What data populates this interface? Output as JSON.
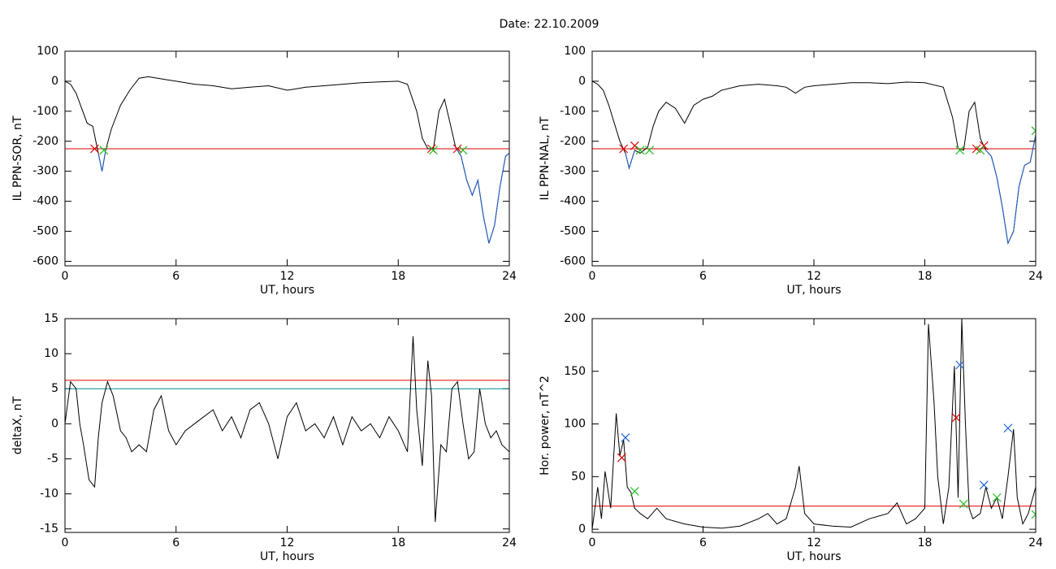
{
  "title": "Date:  22.10.2009",
  "chart_data": [
    {
      "type": "line",
      "ylabel": "IL PPN-SOR, nT",
      "xlabel": "UT, hours",
      "xlim": [
        0,
        24
      ],
      "xticks": [
        0,
        6,
        12,
        18,
        24
      ],
      "ylim": [
        -615,
        100
      ],
      "yticks": [
        -600,
        -500,
        -400,
        -300,
        -200,
        -100,
        0,
        100
      ],
      "x": [
        0,
        0.3,
        0.6,
        0.9,
        1.2,
        1.5,
        1.8,
        2.0,
        2.2,
        2.5,
        3,
        3.5,
        4,
        4.5,
        5,
        5.5,
        6,
        7,
        8,
        9,
        10,
        11,
        12,
        12.5,
        13,
        14,
        15,
        16,
        17,
        18,
        18.5,
        19,
        19.3,
        19.6,
        19.9,
        20.2,
        20.5,
        20.8,
        21.1,
        21.4,
        21.7,
        22,
        22.3,
        22.6,
        22.9,
        23.2,
        23.5,
        23.8,
        24
      ],
      "series": [
        {
          "color": "#000000",
          "values": [
            0,
            -10,
            -40,
            -90,
            -140,
            -150,
            -240,
            -300,
            -230,
            -160,
            -80,
            -30,
            10,
            15,
            10,
            5,
            0,
            -10,
            -15,
            -25,
            -20,
            -15,
            -30,
            -25,
            -20,
            -15,
            -10,
            -5,
            -2,
            0,
            -10,
            -100,
            -190,
            -225,
            -225,
            -100,
            -60,
            -140,
            -220,
            -250,
            -330,
            -380,
            -330,
            -450,
            -540,
            -480,
            -350,
            -250,
            -240
          ]
        },
        {
          "color": "#1f5fd0",
          "x": [
            1.8,
            2.0,
            2.2
          ],
          "values": [
            -240,
            -300,
            -230
          ]
        },
        {
          "color": "#1f5fd0",
          "x": [
            21.1,
            21.4,
            21.7,
            22,
            22.3,
            22.6,
            22.9,
            23.2,
            23.5,
            23.8,
            24
          ],
          "values": [
            -220,
            -250,
            -330,
            -380,
            -330,
            -450,
            -540,
            -480,
            -350,
            -250,
            -240
          ]
        }
      ],
      "hlines": [
        {
          "value": -225,
          "color": "#e00000"
        }
      ],
      "markers": [
        {
          "color": "#e00000",
          "x": [
            1.6,
            19.8,
            21.2
          ],
          "y": [
            -225,
            -225,
            -225
          ]
        },
        {
          "color": "#20c020",
          "x": [
            2.1,
            19.9,
            21.5
          ],
          "y": [
            -230,
            -230,
            -230
          ]
        }
      ]
    },
    {
      "type": "line",
      "ylabel": "IL PPN-NAL, nT",
      "xlabel": "UT, hours",
      "xlim": [
        0,
        24
      ],
      "xticks": [
        0,
        6,
        12,
        18,
        24
      ],
      "ylim": [
        -615,
        100
      ],
      "yticks": [
        -600,
        -500,
        -400,
        -300,
        -200,
        -100,
        0,
        100
      ],
      "x": [
        0,
        0.3,
        0.6,
        0.9,
        1.2,
        1.5,
        1.8,
        2.0,
        2.3,
        2.6,
        3,
        3.3,
        3.6,
        4,
        4.5,
        5,
        5.5,
        6,
        6.5,
        7,
        8,
        9,
        10,
        10.5,
        11,
        11.5,
        12,
        13,
        14,
        15,
        16,
        17,
        18,
        19,
        19.5,
        19.8,
        20.1,
        20.4,
        20.7,
        21,
        21.3,
        21.6,
        21.9,
        22.2,
        22.5,
        22.8,
        23.1,
        23.4,
        23.7,
        24
      ],
      "series": [
        {
          "color": "#000000",
          "values": [
            0,
            -10,
            -30,
            -80,
            -140,
            -200,
            -240,
            -290,
            -230,
            -240,
            -220,
            -150,
            -100,
            -70,
            -90,
            -140,
            -80,
            -60,
            -50,
            -30,
            -15,
            -10,
            -15,
            -20,
            -40,
            -20,
            -15,
            -10,
            -5,
            -5,
            -8,
            -3,
            -5,
            -20,
            -120,
            -225,
            -230,
            -100,
            -70,
            -190,
            -230,
            -250,
            -320,
            -420,
            -540,
            -500,
            -350,
            -280,
            -270,
            -180
          ]
        },
        {
          "color": "#1f5fd0",
          "x": [
            1.8,
            2.0,
            2.3
          ],
          "values": [
            -240,
            -290,
            -230
          ]
        },
        {
          "color": "#1f5fd0",
          "x": [
            21.3,
            21.6,
            21.9,
            22.2,
            22.5,
            22.8,
            23.1,
            23.4,
            23.7,
            24
          ],
          "values": [
            -230,
            -250,
            -320,
            -420,
            -540,
            -500,
            -350,
            -280,
            -270,
            -180
          ]
        }
      ],
      "hlines": [
        {
          "value": -225,
          "color": "#e00000"
        }
      ],
      "markers": [
        {
          "color": "#e00000",
          "x": [
            1.7,
            2.3,
            20.8,
            21.2
          ],
          "y": [
            -225,
            -215,
            -225,
            -215
          ]
        },
        {
          "color": "#20c020",
          "x": [
            2.6,
            3.1,
            19.9,
            21.0,
            24
          ],
          "y": [
            -230,
            -230,
            -230,
            -230,
            -165
          ]
        }
      ]
    },
    {
      "type": "line",
      "ylabel": "deltaX, nT",
      "xlabel": "UT, hours",
      "xlim": [
        0,
        24
      ],
      "xticks": [
        0,
        6,
        12,
        18,
        24
      ],
      "ylim": [
        -15.5,
        15
      ],
      "yticks": [
        -15,
        -10,
        -5,
        0,
        5,
        10,
        15
      ],
      "x": [
        0,
        0.3,
        0.6,
        0.8,
        1,
        1.3,
        1.6,
        1.8,
        2,
        2.3,
        2.6,
        3,
        3.3,
        3.6,
        4,
        4.4,
        4.8,
        5.2,
        5.6,
        6,
        6.5,
        7,
        7.5,
        8,
        8.5,
        9,
        9.5,
        10,
        10.5,
        11,
        11.5,
        12,
        12.5,
        13,
        13.5,
        14,
        14.5,
        15,
        15.5,
        16,
        16.5,
        17,
        17.5,
        18,
        18.5,
        18.8,
        19,
        19.3,
        19.6,
        19.8,
        20,
        20.3,
        20.6,
        20.9,
        21.2,
        21.5,
        21.8,
        22.1,
        22.4,
        22.7,
        23,
        23.3,
        23.6,
        24
      ],
      "series": [
        {
          "color": "#000000",
          "values": [
            0,
            6,
            5,
            0,
            -3,
            -8,
            -9,
            -2,
            3,
            6,
            4,
            -1,
            -2,
            -4,
            -3,
            -4,
            2,
            4,
            -1,
            -3,
            -1,
            0,
            1,
            2,
            -1,
            1,
            -2,
            2,
            3,
            0,
            -5,
            1,
            3,
            -1,
            0,
            -2,
            1,
            -3,
            1,
            -1,
            0,
            -2,
            1,
            -1,
            -4,
            12.5,
            2,
            -6,
            9,
            4,
            -14,
            -3,
            -4,
            5,
            6,
            0,
            -5,
            -4,
            5,
            0,
            -2,
            -1,
            -3,
            -4
          ]
        }
      ],
      "hlines": [
        {
          "value": 6.2,
          "color": "#e00000"
        },
        {
          "value": 5.0,
          "color": "#008b8b"
        }
      ],
      "markers": []
    },
    {
      "type": "line",
      "ylabel": "Hor. power, nT^2",
      "xlabel": "UT, hours",
      "xlim": [
        0,
        24
      ],
      "xticks": [
        0,
        6,
        12,
        18,
        24
      ],
      "ylim": [
        -3,
        200
      ],
      "yticks": [
        0,
        50,
        100,
        150,
        200
      ],
      "x": [
        0,
        0.3,
        0.5,
        0.7,
        1,
        1.3,
        1.5,
        1.7,
        1.9,
        2.1,
        2.3,
        2.6,
        3,
        3.5,
        4,
        5,
        6,
        7,
        8,
        9,
        9.5,
        10,
        10.5,
        11,
        11.2,
        11.5,
        12,
        13,
        14,
        15,
        16,
        16.5,
        17,
        17.5,
        18,
        18.2,
        18.5,
        18.7,
        19,
        19.3,
        19.6,
        19.8,
        20,
        20.2,
        20.4,
        20.6,
        21,
        21.3,
        21.6,
        21.9,
        22.2,
        22.5,
        22.8,
        23,
        23.3,
        23.6,
        24
      ],
      "series": [
        {
          "color": "#000000",
          "values": [
            0,
            40,
            10,
            55,
            20,
            110,
            70,
            85,
            40,
            35,
            20,
            15,
            10,
            20,
            10,
            5,
            2,
            1,
            3,
            10,
            15,
            5,
            10,
            40,
            60,
            15,
            5,
            3,
            2,
            10,
            15,
            25,
            5,
            10,
            20,
            195,
            120,
            50,
            5,
            40,
            155,
            30,
            200,
            100,
            20,
            10,
            15,
            40,
            20,
            30,
            10,
            50,
            95,
            30,
            5,
            15,
            40
          ]
        }
      ],
      "hlines": [
        {
          "value": 22,
          "color": "#e00000"
        }
      ],
      "markers": [
        {
          "color": "#1f5fd0",
          "x": [
            1.8,
            19.9,
            21.2,
            22.5
          ],
          "y": [
            87,
            156,
            42,
            96
          ]
        },
        {
          "color": "#e00000",
          "x": [
            1.6,
            19.7
          ],
          "y": [
            68,
            106
          ]
        },
        {
          "color": "#20c020",
          "x": [
            2.3,
            20.1,
            21.9,
            24
          ],
          "y": [
            36,
            24,
            30,
            14
          ]
        }
      ]
    }
  ]
}
